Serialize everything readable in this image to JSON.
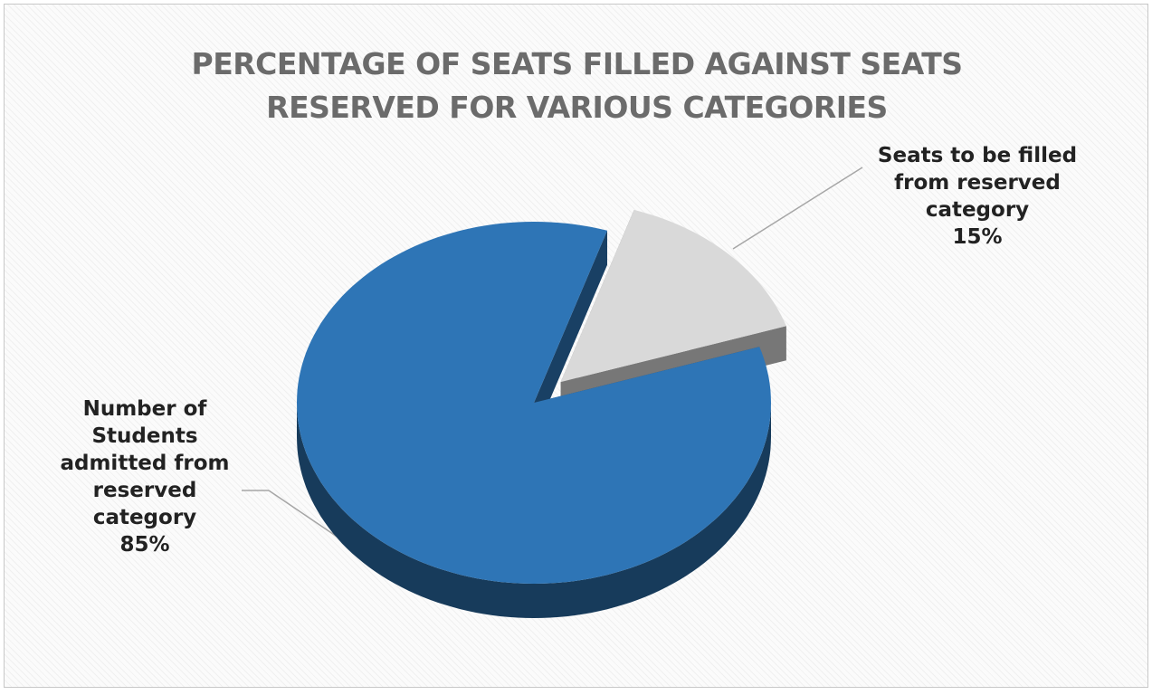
{
  "chart_data": {
    "type": "pie",
    "title": "PERCENTAGE OF SEATS FILLED AGAINST SEATS RESERVED FOR VARIOUS CATEGORIES",
    "categories": [
      "Seats to be filled from reserved category",
      "Number of Students admitted from reserved category"
    ],
    "values": [
      15,
      85
    ],
    "value_labels": [
      "15%",
      "85%"
    ],
    "colors": [
      "#d9d9d9",
      "#2e75b6"
    ]
  }
}
